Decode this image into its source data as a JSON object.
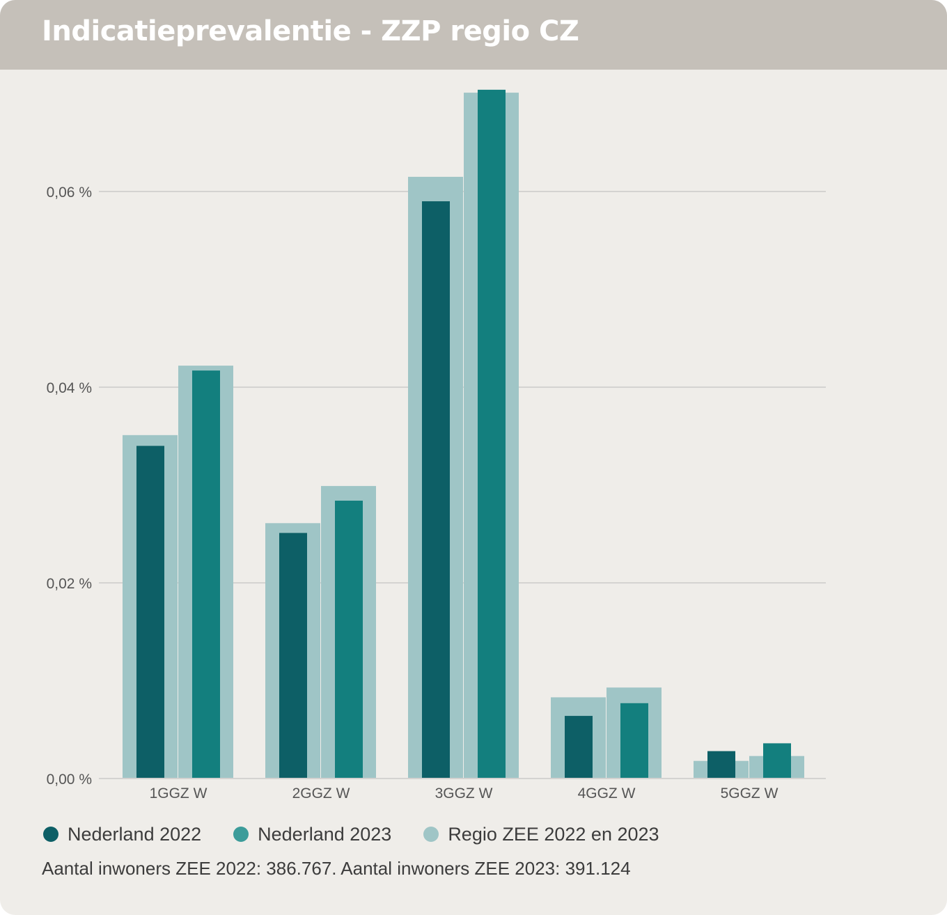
{
  "title": "Indicatieprevalentie - ZZP regio CZ",
  "colors": {
    "nl2022": "#0d5f66",
    "nl2023": "#137f7e",
    "regio": "#9fc5c6",
    "legend_nl2023": "#3c9c9a",
    "grid": "#d4d3d1"
  },
  "legend": [
    {
      "label": "Nederland 2022",
      "color": "#0d5f66"
    },
    {
      "label": "Nederland 2023",
      "color": "#3c9c9a"
    },
    {
      "label": "Regio ZEE 2022 en 2023",
      "color": "#9fc5c6"
    }
  ],
  "footnote": "Aantal inwoners ZEE 2022: 386.767. Aantal inwoners ZEE 2023: 391.124",
  "chart_data": {
    "type": "bar",
    "categories": [
      "1GGZ W",
      "2GGZ W",
      "3GGZ W",
      "4GGZ W",
      "5GGZ W"
    ],
    "series": [
      {
        "name": "Nederland 2022",
        "values": [
          0.034,
          0.0251,
          0.059,
          0.0064,
          0.0028
        ]
      },
      {
        "name": "Nederland 2023",
        "values": [
          0.0417,
          0.0284,
          0.0704,
          0.0077,
          0.0036
        ]
      },
      {
        "name": "Regio ZEE 2022",
        "values": [
          0.0351,
          0.0261,
          0.0615,
          0.0083,
          0.0018
        ]
      },
      {
        "name": "Regio ZEE 2023",
        "values": [
          0.0422,
          0.0299,
          0.0701,
          0.0093,
          0.0023
        ]
      }
    ],
    "yticks": [
      "0,00 %",
      "0,02 %",
      "0,04 %",
      "0,06 %"
    ],
    "ytick_values": [
      0,
      0.02,
      0.04,
      0.06
    ],
    "ylim": [
      0,
      0.07
    ],
    "grid": true,
    "legend_position": "bottom-left"
  }
}
